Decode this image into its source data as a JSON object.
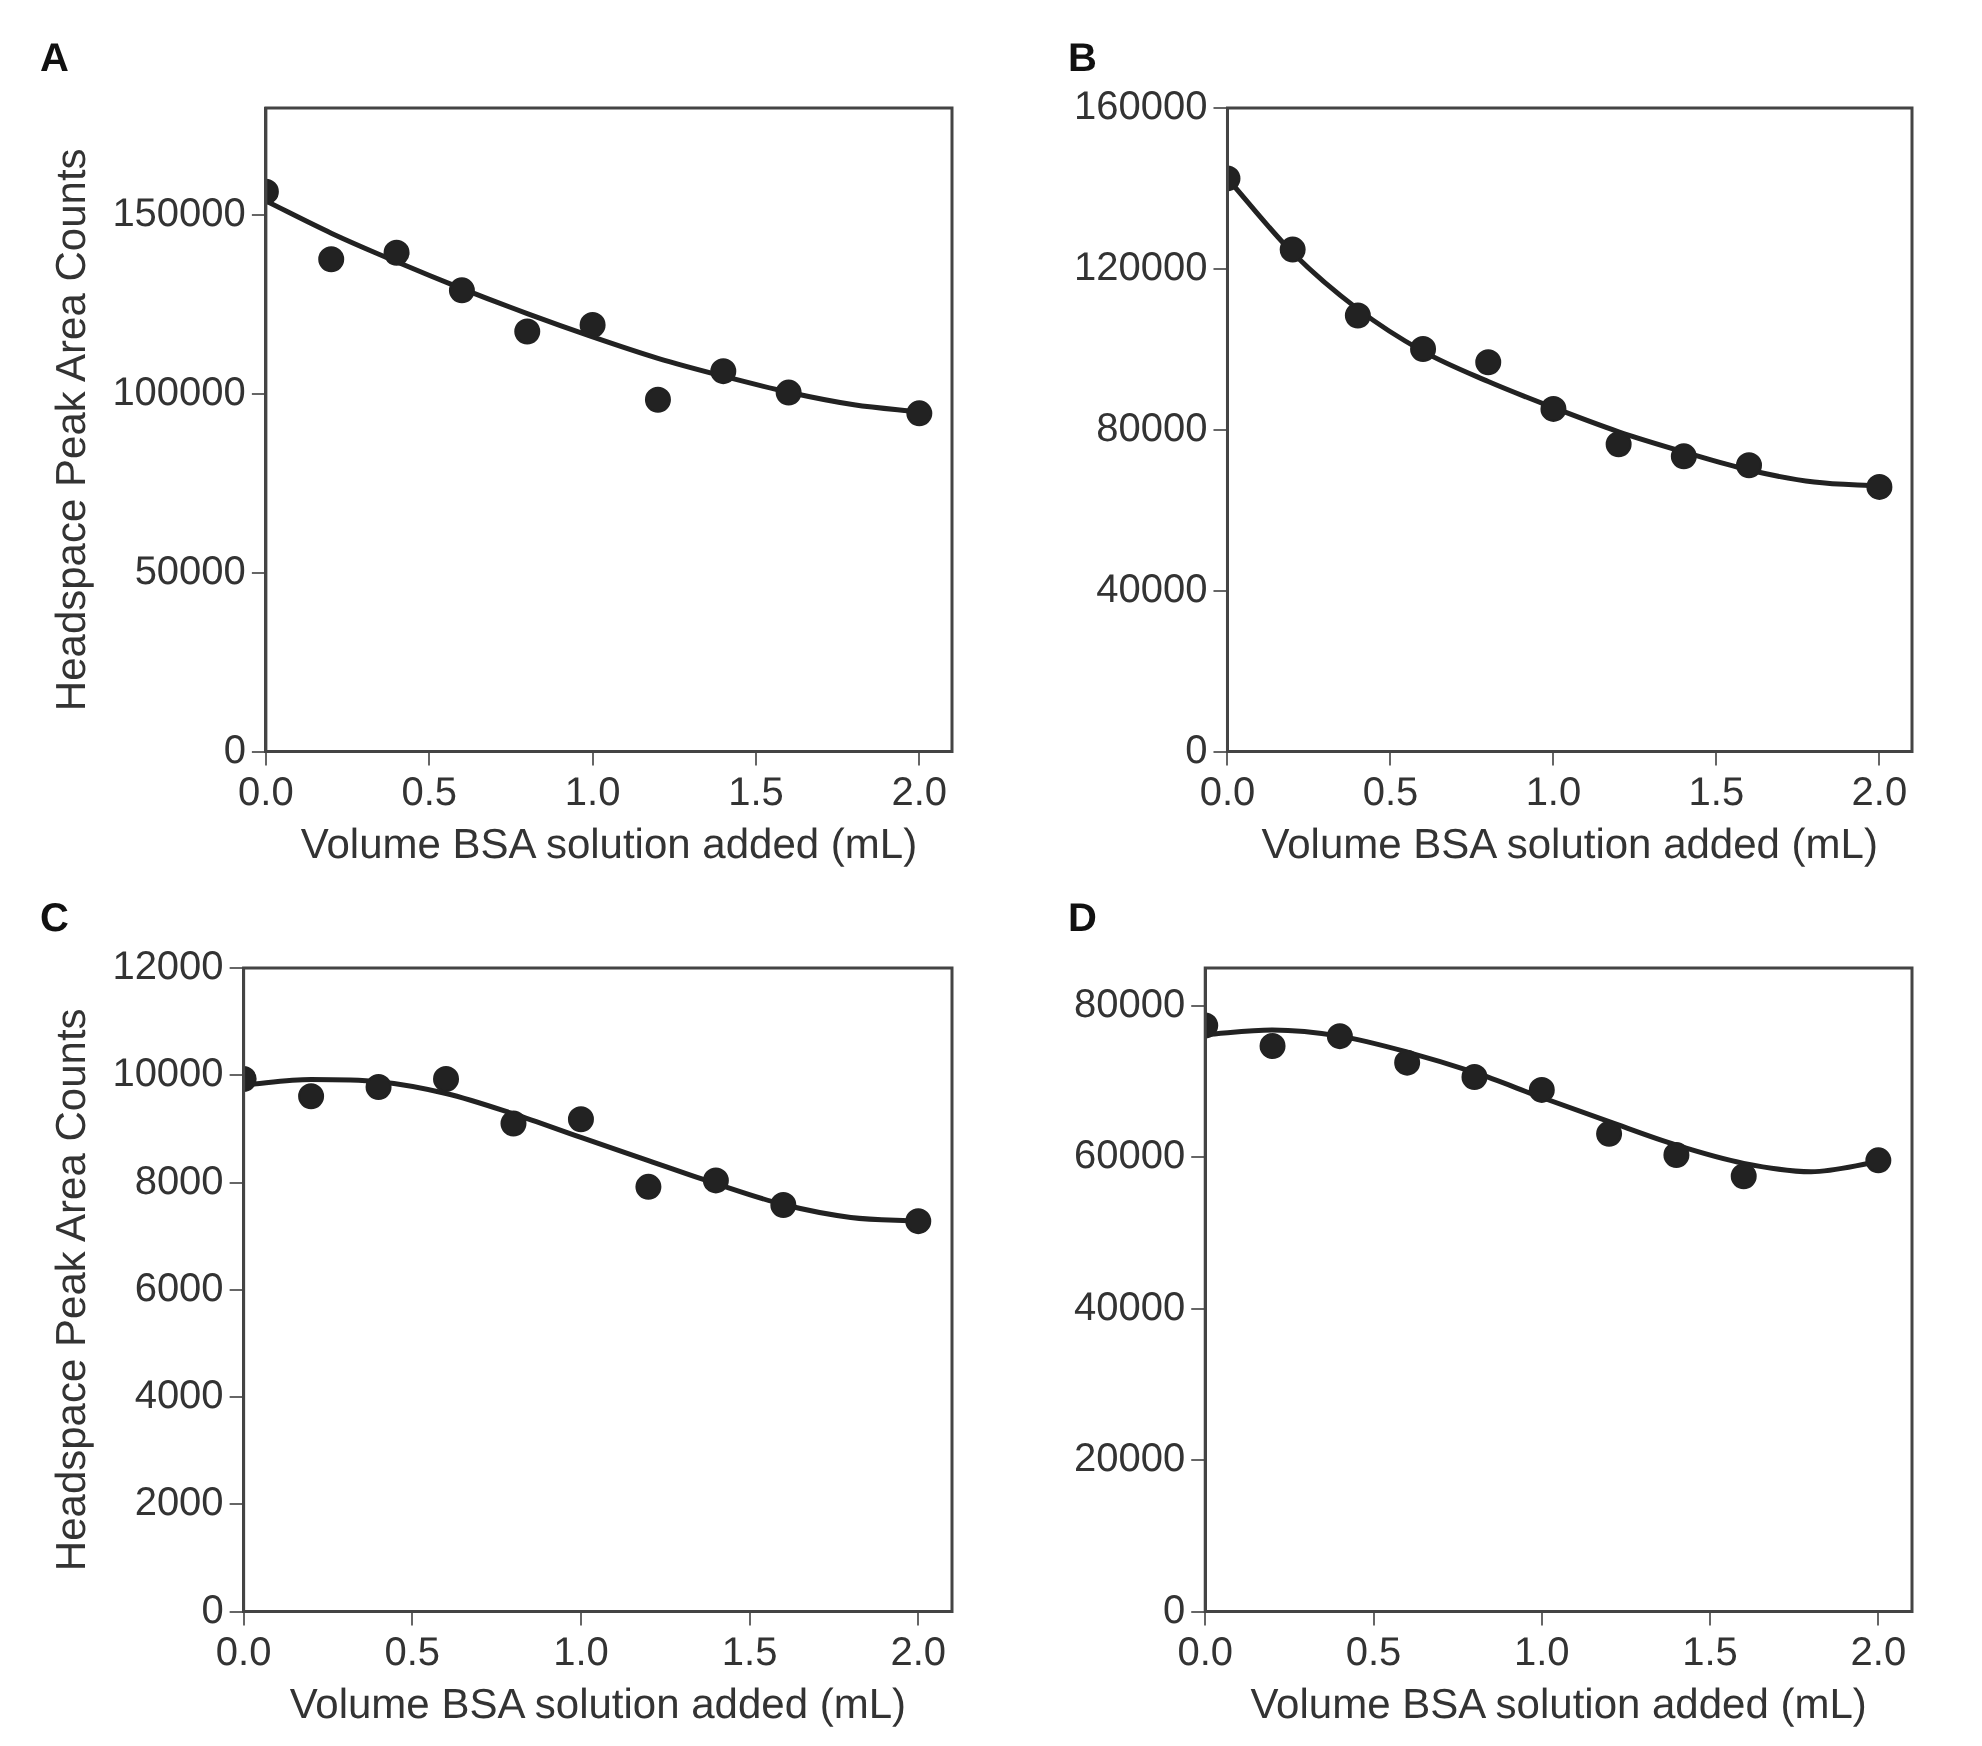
{
  "chart_data": [
    {
      "type": "scatter",
      "title": "A",
      "xlabel": "Volume BSA solution added (mL)",
      "ylabel": "Headspace Peak Area Counts",
      "xlim": [
        0,
        2.1
      ],
      "xticks": [
        {
          "value": 0,
          "label": "0.0"
        },
        {
          "value": 0.5,
          "label": "0.5"
        },
        {
          "value": 1,
          "label": "1.0"
        },
        {
          "value": 1.5,
          "label": "1.5"
        },
        {
          "value": 2,
          "label": "2.0"
        }
      ],
      "ylim": [
        0,
        180000
      ],
      "yticks": [
        0,
        50000,
        100000,
        150000
      ],
      "grid": false,
      "marker": "circle",
      "series": [
        {
          "type": "scatter",
          "color": "#222222",
          "x": [
            0,
            0.2,
            0.4,
            0.6,
            0.8,
            1.0,
            1.2,
            1.4,
            1.6,
            2.0
          ],
          "values": [
            156600,
            137700,
            139500,
            129000,
            117500,
            119300,
            98400,
            106400,
            100400,
            94600
          ]
        },
        {
          "type": "line",
          "color": "#222222",
          "marker": "none",
          "x": [
            0,
            0.2,
            0.4,
            0.6,
            0.8,
            1.0,
            1.2,
            1.4,
            1.6,
            1.8,
            2.0
          ],
          "values": [
            154000,
            145000,
            137000,
            129500,
            122500,
            116000,
            110000,
            105000,
            100500,
            97000,
            95000
          ]
        }
      ]
    },
    {
      "type": "scatter",
      "title": "B",
      "xlabel": "Volume BSA solution added (mL)",
      "xlim": [
        0,
        2.1
      ],
      "xticks": [
        {
          "value": 0,
          "label": "0.0"
        },
        {
          "value": 0.5,
          "label": "0.5"
        },
        {
          "value": 1,
          "label": "1.0"
        },
        {
          "value": 1.5,
          "label": "1.5"
        },
        {
          "value": 2,
          "label": "2.0"
        }
      ],
      "ylim": [
        0,
        160000
      ],
      "yticks": [
        0,
        40000,
        80000,
        120000,
        160000
      ],
      "grid": false,
      "marker": "circle",
      "series": [
        {
          "type": "scatter",
          "color": "#222222",
          "x": [
            0,
            0.2,
            0.4,
            0.6,
            0.8,
            1.0,
            1.2,
            1.4,
            1.6,
            2.0
          ],
          "values": [
            142500,
            124800,
            108400,
            100100,
            96800,
            85200,
            76400,
            73400,
            71200,
            65800
          ]
        },
        {
          "type": "line",
          "color": "#222222",
          "marker": "none",
          "x": [
            0,
            0.2,
            0.4,
            0.6,
            0.8,
            1.0,
            1.2,
            1.4,
            1.6,
            1.8,
            2.0
          ],
          "values": [
            142500,
            124000,
            110000,
            99500,
            92000,
            85500,
            79500,
            74500,
            70000,
            67000,
            66000
          ]
        }
      ]
    },
    {
      "type": "scatter",
      "title": "C",
      "xlabel": "Volume BSA solution added (mL)",
      "ylabel": "Headspace Peak Area Counts",
      "xlim": [
        0,
        2.1
      ],
      "xticks": [
        {
          "value": 0,
          "label": "0.0"
        },
        {
          "value": 0.5,
          "label": "0.5"
        },
        {
          "value": 1,
          "label": "1.0"
        },
        {
          "value": 1.5,
          "label": "1.5"
        },
        {
          "value": 2,
          "label": "2.0"
        }
      ],
      "ylim": [
        0,
        12000
      ],
      "yticks": [
        0,
        2000,
        4000,
        6000,
        8000,
        10000,
        12000
      ],
      "grid": false,
      "marker": "circle",
      "series": [
        {
          "type": "scatter",
          "color": "#222222",
          "x": [
            0,
            0.2,
            0.4,
            0.6,
            0.8,
            1.0,
            1.2,
            1.4,
            1.6,
            2.0
          ],
          "values": [
            9930,
            9610,
            9780,
            9930,
            9100,
            9180,
            7920,
            8040,
            7580,
            7280
          ]
        },
        {
          "type": "line",
          "color": "#222222",
          "marker": "none",
          "x": [
            0,
            0.2,
            0.4,
            0.6,
            0.8,
            1.0,
            1.2,
            1.4,
            1.6,
            1.8,
            2.0
          ],
          "values": [
            9820,
            9920,
            9880,
            9660,
            9280,
            8840,
            8410,
            7980,
            7590,
            7350,
            7280
          ]
        }
      ]
    },
    {
      "type": "scatter",
      "title": "D",
      "xlabel": "Volume BSA solution added (mL)",
      "xlim": [
        0,
        2.1
      ],
      "xticks": [
        {
          "value": 0,
          "label": "0.0"
        },
        {
          "value": 0.5,
          "label": "0.5"
        },
        {
          "value": 1,
          "label": "1.0"
        },
        {
          "value": 1.5,
          "label": "1.5"
        },
        {
          "value": 2,
          "label": "2.0"
        }
      ],
      "ylim": [
        0,
        85000
      ],
      "yticks": [
        0,
        20000,
        40000,
        60000,
        80000
      ],
      "grid": false,
      "marker": "circle",
      "series": [
        {
          "type": "scatter",
          "color": "#222222",
          "x": [
            0,
            0.2,
            0.4,
            0.6,
            0.8,
            1.0,
            1.2,
            1.4,
            1.6,
            2.0
          ],
          "values": [
            77400,
            74700,
            76000,
            72500,
            70600,
            68900,
            63100,
            60300,
            57500,
            59600
          ]
        },
        {
          "type": "line",
          "color": "#222222",
          "marker": "none",
          "x": [
            0,
            0.2,
            0.4,
            0.6,
            0.8,
            1.0,
            1.2,
            1.4,
            1.6,
            1.8,
            2.0
          ],
          "values": [
            76200,
            76800,
            76000,
            73900,
            71200,
            67900,
            64700,
            61600,
            59200,
            58100,
            59400
          ]
        }
      ]
    }
  ]
}
